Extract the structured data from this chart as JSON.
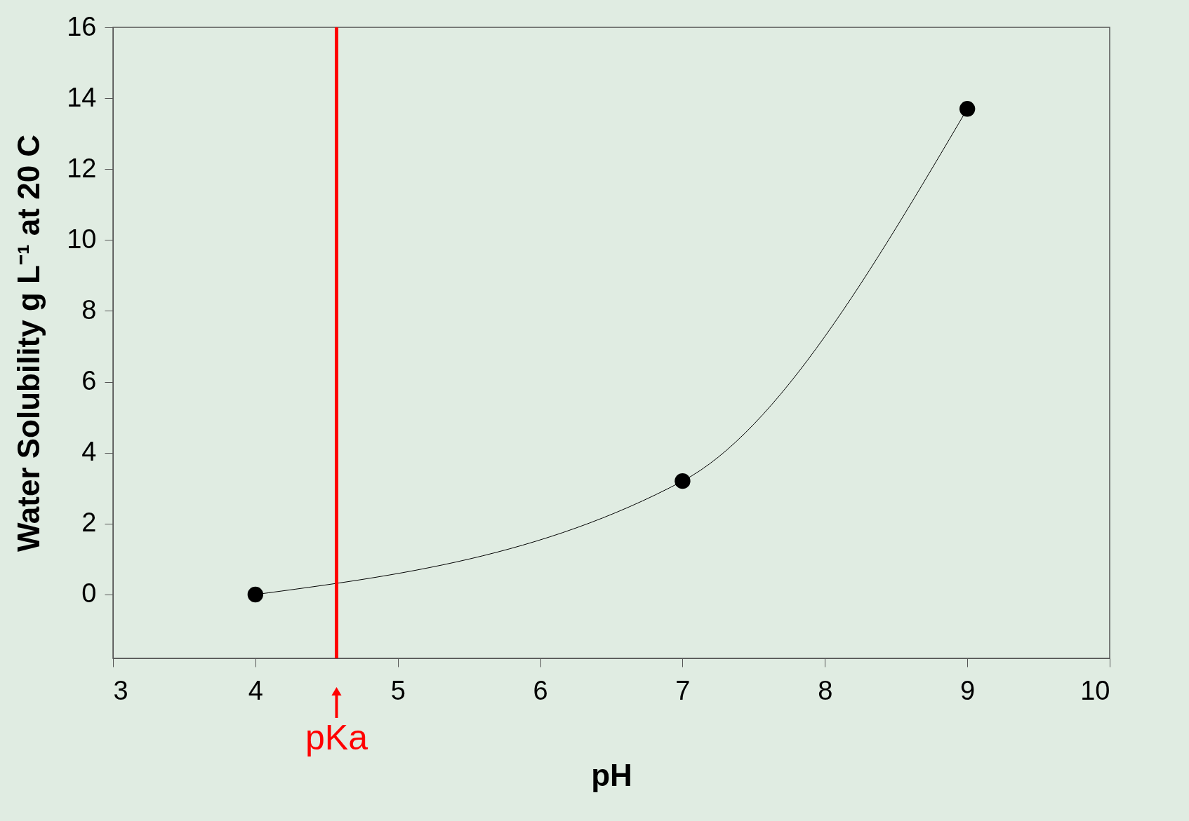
{
  "chart_data": {
    "type": "line",
    "xlabel": "pH",
    "ylabel": "Water Solubility g L⁻¹ at 20 C",
    "x": [
      4,
      7,
      9
    ],
    "series": [
      {
        "color": "#000000",
        "values": [
          0,
          3.2,
          13.7
        ]
      }
    ],
    "marker": "circle",
    "line_style": "solid",
    "xlim": [
      3,
      10
    ],
    "xticks": [
      3,
      4,
      5,
      6,
      7,
      8,
      9,
      10
    ],
    "ylim": [
      -1.8,
      16
    ],
    "yticks": [
      0,
      2,
      4,
      6,
      8,
      10,
      12,
      14,
      16
    ],
    "grid": false,
    "ref_lines": [
      {
        "axis": "x",
        "value": 4.57,
        "label": "pKa",
        "color": "#ff0000",
        "line_style": "solid"
      }
    ]
  }
}
